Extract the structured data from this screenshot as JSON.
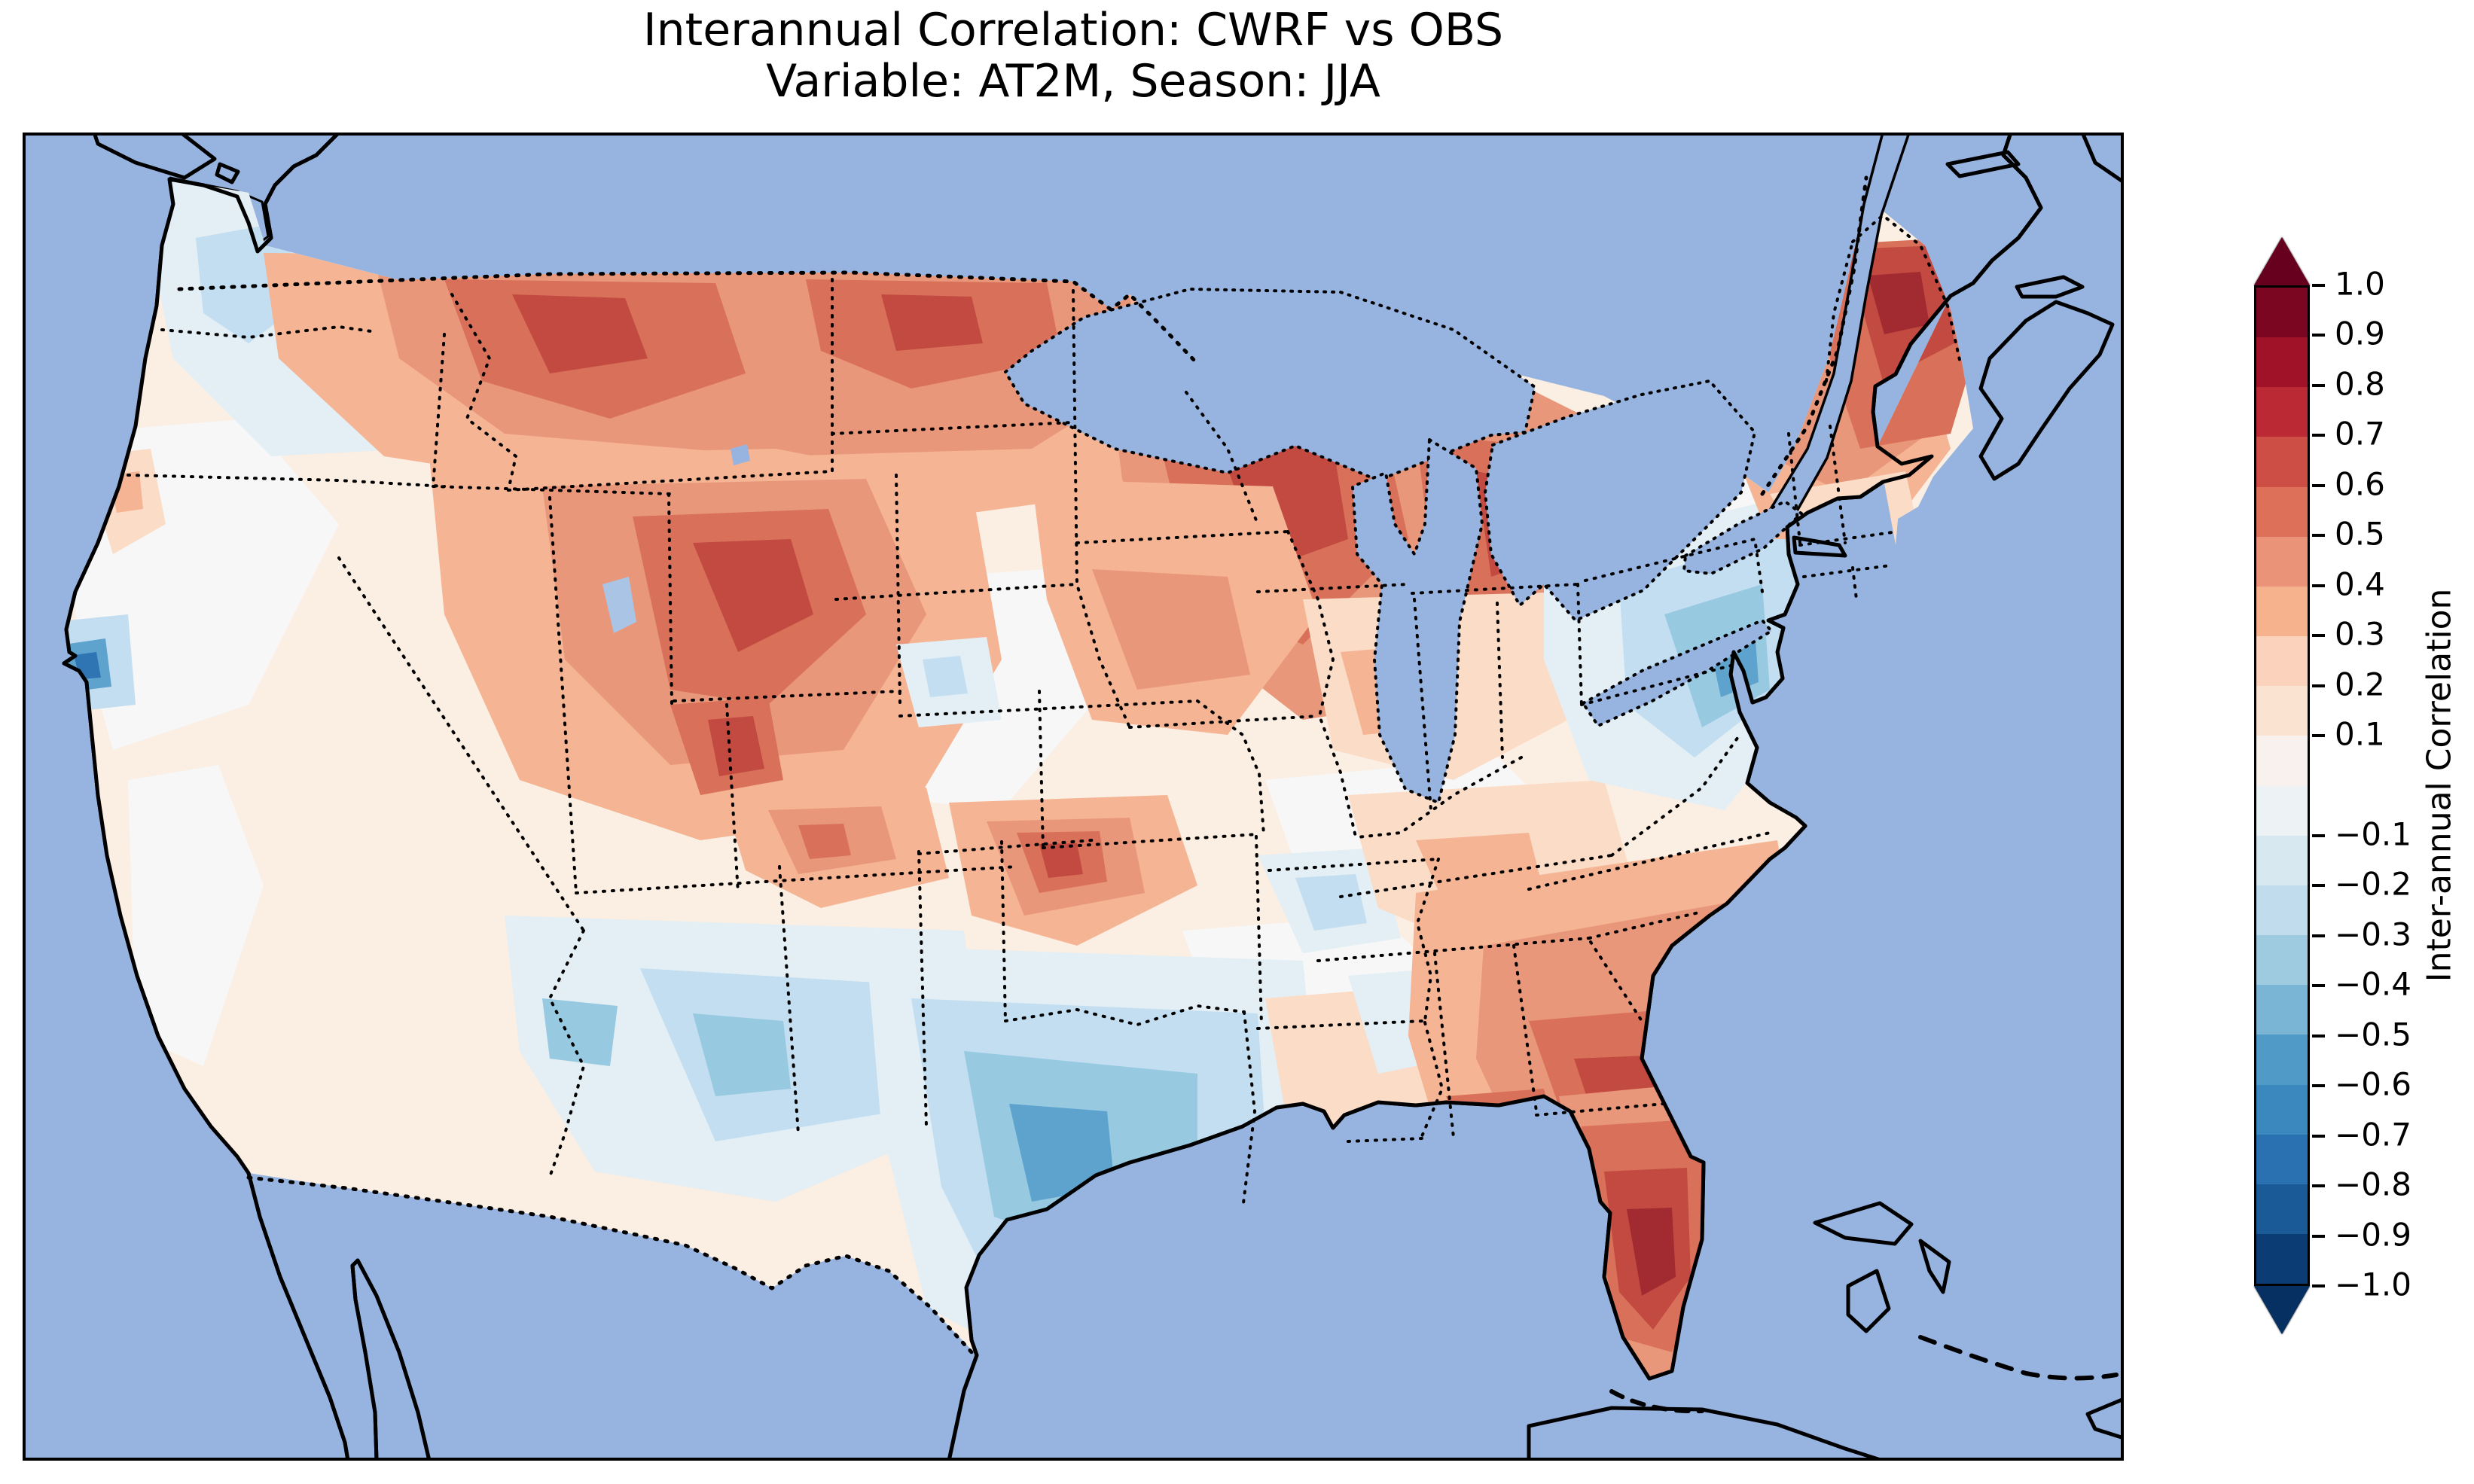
{
  "title": {
    "line1": "Interannual Correlation: CWRF vs OBS",
    "line2": "Variable: AT2M, Season: JJA"
  },
  "colorbar": {
    "label": "Inter-annual Correlation",
    "extend_upper_color": "#67001f",
    "extend_lower_color": "#053061",
    "segments": [
      "#7a0622",
      "#9f1228",
      "#bb2a34",
      "#cc4e44",
      "#dd7058",
      "#eb9379",
      "#f6b18d",
      "#fbd3bc",
      "#fbe3d2",
      "#f8f1ed",
      "#edf2f5",
      "#d7e8f1",
      "#c1dcec",
      "#9fcbe1",
      "#7bb5d5",
      "#4f9ac6",
      "#3a88bd",
      "#2a71b2",
      "#1a5a96",
      "#0c3c74"
    ],
    "ticks": [
      {
        "label": "1.0",
        "value": 1.0
      },
      {
        "label": "0.9",
        "value": 0.9
      },
      {
        "label": "0.8",
        "value": 0.8
      },
      {
        "label": "0.7",
        "value": 0.7
      },
      {
        "label": "0.6",
        "value": 0.6
      },
      {
        "label": "0.5",
        "value": 0.5
      },
      {
        "label": "0.4",
        "value": 0.4
      },
      {
        "label": "0.3",
        "value": 0.3
      },
      {
        "label": "0.2",
        "value": 0.2
      },
      {
        "label": "0.1",
        "value": 0.1
      },
      {
        "label": "−0.1",
        "value": -0.1
      },
      {
        "label": "−0.2",
        "value": -0.2
      },
      {
        "label": "−0.3",
        "value": -0.3
      },
      {
        "label": "−0.4",
        "value": -0.4
      },
      {
        "label": "−0.5",
        "value": -0.5
      },
      {
        "label": "−0.6",
        "value": -0.6
      },
      {
        "label": "−0.7",
        "value": -0.7
      },
      {
        "label": "−0.8",
        "value": -0.8
      },
      {
        "label": "−0.9",
        "value": -0.9
      },
      {
        "label": "−1.0",
        "value": -1.0
      }
    ]
  },
  "map": {
    "colors": {
      "ocean": "#97b4e0",
      "land": "#eeeedb",
      "coast": "#000000",
      "base": "#fbeee2",
      "r1": "#fbdcc7",
      "r2": "#f5b493",
      "r3": "#e9977a",
      "r4": "#d9705a",
      "r5": "#c24a41",
      "r6": "#a22b31",
      "b1": "#e3eff5",
      "b2": "#c2def0",
      "b3": "#97c9e1",
      "b4": "#5ea3cd",
      "b5": "#2f74b3"
    }
  },
  "chart_data": {
    "type": "heatmap",
    "subtype": "filled-contour map (cartopy, Lambert Conformal, continental United States)",
    "title": "Interannual Correlation: CWRF vs OBS",
    "subtitle": "Variable: AT2M, Season: JJA",
    "colorbar_label": "Inter-annual Correlation",
    "colormap": "RdBu_r",
    "levels": [
      -1.0,
      -0.9,
      -0.8,
      -0.7,
      -0.6,
      -0.5,
      -0.4,
      -0.3,
      -0.2,
      -0.1,
      0.0,
      0.1,
      0.2,
      0.3,
      0.4,
      0.5,
      0.6,
      0.7,
      0.8,
      0.9,
      1.0
    ],
    "colorbar_ticks": [
      1.0,
      0.9,
      0.8,
      0.7,
      0.6,
      0.5,
      0.4,
      0.3,
      0.2,
      0.1,
      -0.1,
      -0.2,
      -0.3,
      -0.4,
      -0.5,
      -0.6,
      -0.7,
      -0.8,
      -0.9,
      -1.0
    ],
    "colorbar_extend": "both",
    "legend_position": "right vertical colorbar",
    "regions": [
      {
        "region": "Pacific Northwest (Washington / Oregon)",
        "approx_correlation": -0.15
      },
      {
        "region": "San Francisco Bay area",
        "approx_correlation": -0.6
      },
      {
        "region": "California coast / Central Valley",
        "approx_correlation": 0.1
      },
      {
        "region": "Great Basin (Idaho / Nevada / Utah)",
        "approx_correlation": 0.7
      },
      {
        "region": "Montana / Dakotas / Minnesota northern band",
        "approx_correlation": 0.6
      },
      {
        "region": "Wisconsin / Michigan around Great Lakes",
        "approx_correlation": 0.7
      },
      {
        "region": "Central plains (Nebraska / Kansas)",
        "approx_correlation": 0.15
      },
      {
        "region": "Oklahoma / Texas panhandle spot",
        "approx_correlation": 0.6
      },
      {
        "region": "Texas / south-central US",
        "approx_correlation": -0.4
      },
      {
        "region": "Southern Arizona / New Mexico",
        "approx_correlation": -0.3
      },
      {
        "region": "Lower Mississippi valley",
        "approx_correlation": 0.1
      },
      {
        "region": "Southeast (Alabama / Georgia / Gulf Coast)",
        "approx_correlation": 0.6
      },
      {
        "region": "Florida peninsula",
        "approx_correlation": 0.8
      },
      {
        "region": "Mid-Atlantic (Virginia / Carolinas inland)",
        "approx_correlation": -0.4
      },
      {
        "region": "Ohio Valley / Midwest",
        "approx_correlation": 0.2
      },
      {
        "region": "New England",
        "approx_correlation": 0.5
      },
      {
        "region": "Maine",
        "approx_correlation": 0.8
      }
    ]
  }
}
